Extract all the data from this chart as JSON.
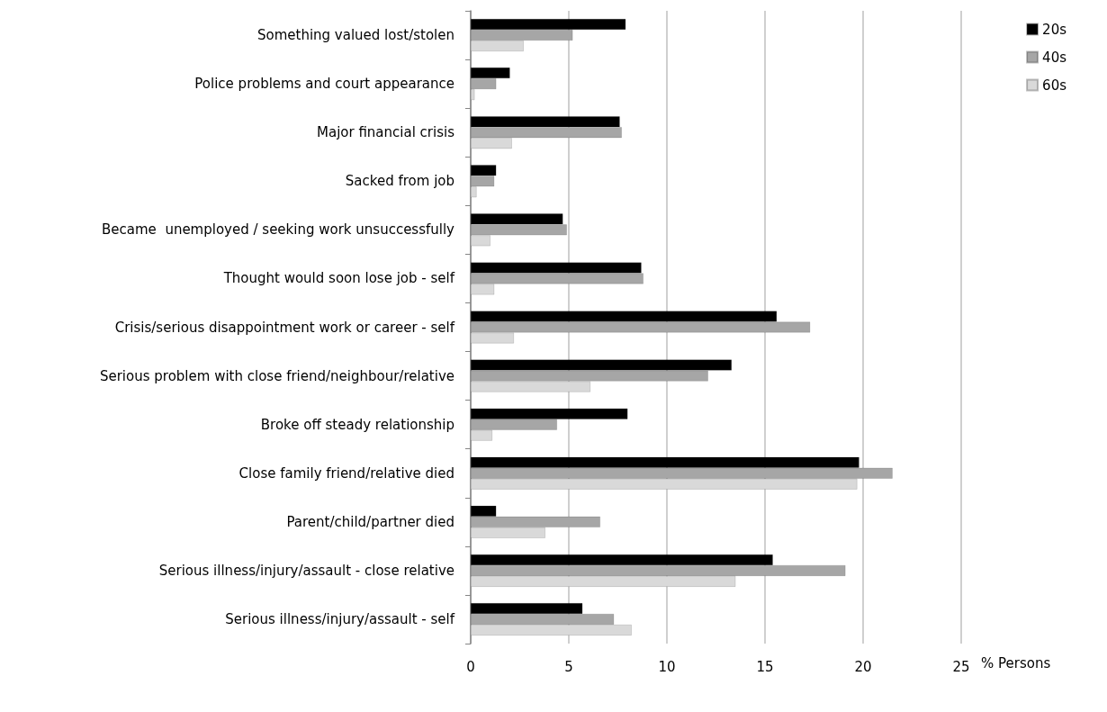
{
  "chart_data": {
    "type": "bar",
    "orientation": "horizontal",
    "xlabel": "% Persons",
    "categories": [
      "Something valued lost/stolen",
      "Police problems and court appearance",
      "Major financial crisis",
      "Sacked from job",
      "Became  unemployed / seeking work unsuccessfully",
      "Thought would soon lose job - self",
      "Crisis/serious disappointment work or career - self",
      "Serious problem with close friend/neighbour/relative",
      "Broke off steady relationship",
      "Close family friend/relative died",
      "Parent/child/partner died",
      "Serious illness/injury/assault - close relative",
      "Serious illness/injury/assault - self"
    ],
    "series": [
      {
        "name": "20s",
        "color": "#000000",
        "values": [
          7.9,
          2.0,
          7.6,
          1.3,
          4.7,
          8.7,
          15.6,
          13.3,
          8.0,
          19.8,
          1.3,
          15.4,
          5.7
        ]
      },
      {
        "name": "40s",
        "color": "#a6a6a6",
        "values": [
          5.2,
          1.3,
          7.7,
          1.2,
          4.9,
          8.8,
          17.3,
          12.1,
          4.4,
          21.5,
          6.6,
          19.1,
          7.3
        ]
      },
      {
        "name": "60s",
        "color": "#d9d9d9",
        "values": [
          2.7,
          0.2,
          2.1,
          0.3,
          1.0,
          1.2,
          2.2,
          6.1,
          1.1,
          19.7,
          3.8,
          13.5,
          8.2
        ]
      }
    ],
    "xlim": [
      0,
      25
    ],
    "xticks": [
      0,
      5,
      10,
      15,
      20,
      25
    ],
    "grid": "x",
    "legend": "top right"
  }
}
